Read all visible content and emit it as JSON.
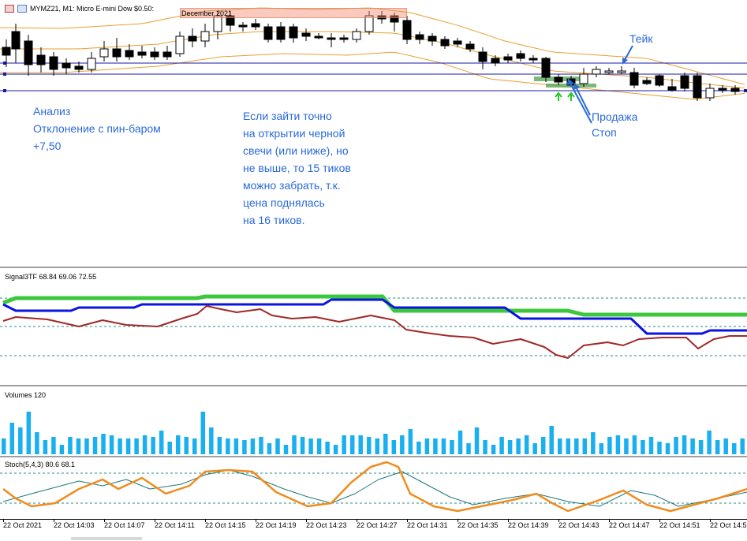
{
  "window": {
    "symbol_title": "MYMZ21, M1:  Micro E-mini Dow $0.50: ",
    "contract_highlight": "December 2021"
  },
  "annotations": {
    "left_note": "Анализ\nОтклонение с пин-баром\n+7,50",
    "center_note": "Если зайти точно\nна открытии черной\nсвечи (или ниже), но\nне выше, то 15 тиков\nможно забрать, т.к.\nцена поднялась\nна 16 тиков.",
    "take_label": "Тейк",
    "sell_label": "Продажа",
    "stop_label": "Стоп"
  },
  "indicators": {
    "signal": {
      "label": "Signal3TF 68.84 69.06 72.55"
    },
    "volumes": {
      "label": "Volumes 120"
    },
    "stoch": {
      "label": "Stoch(5,4,3) 80.6 68.1"
    }
  },
  "time_axis": [
    "22 Oct 2021",
    "22 Oct 14:03",
    "22 Oct 14:07",
    "22 Oct 14:11",
    "22 Oct 14:15",
    "22 Oct 14:19",
    "22 Oct 14:23",
    "22 Oct 14:27",
    "22 Oct 14:31",
    "22 Oct 14:35",
    "22 Oct 14:39",
    "22 Oct 14:43",
    "22 Oct 14:47",
    "22 Oct 14:51",
    "22 Oct 14:5"
  ],
  "colors": {
    "bull_candle": "#ffffff",
    "bear_candle": "#000000",
    "bands": "#e8a030",
    "levels": "#1a1aa8",
    "annotation": "#2a6ad8",
    "entry_zone": "#5aa85a",
    "signal_green": "#3cc83c",
    "signal_blue": "#0a14e0",
    "signal_red": "#a02828",
    "volume_bar": "#1ab0f0",
    "stoch_main": "#f08c1e",
    "stoch_signal": "#1e7878"
  }
}
